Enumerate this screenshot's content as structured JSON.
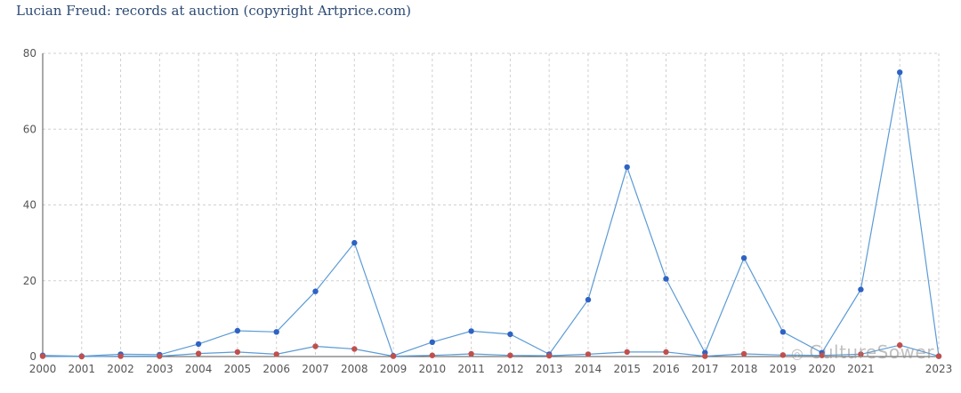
{
  "title": "Lucian Freud: records at auction (copyright Artprice.com)",
  "watermark": "CultureSower",
  "colors": {
    "series_line": "#5b9bd5",
    "series_marker_blue": "#2e63c4",
    "series_marker_red": "#c0504d",
    "grid": "#d0d0d0",
    "axis": "#555555"
  },
  "chart_data": {
    "type": "line",
    "title": "Lucian Freud: records at auction (copyright Artprice.com)",
    "x": [
      "2000",
      "2001",
      "2002",
      "2003",
      "2004",
      "2005",
      "2006",
      "2007",
      "2008",
      "2009",
      "2010",
      "2011",
      "2012",
      "2013",
      "2014",
      "2015",
      "2016",
      "2017",
      "2018",
      "2019",
      "2020",
      "2021",
      "2022",
      "2023"
    ],
    "x_tick_labels": [
      "2000",
      "2001",
      "2002",
      "2003",
      "2004",
      "2005",
      "2006",
      "2007",
      "2008",
      "2009",
      "2010",
      "2011",
      "2012",
      "2013",
      "2014",
      "2015",
      "2016",
      "2017",
      "2018",
      "2019",
      "2020",
      "2021",
      "",
      "2023"
    ],
    "series": [
      {
        "color": "#2e63c4",
        "values": [
          0.3,
          0.1,
          0.6,
          0.5,
          3.3,
          6.8,
          6.5,
          17.2,
          30.0,
          0.2,
          3.8,
          6.7,
          5.9,
          0.6,
          15.0,
          50.0,
          20.5,
          1.0,
          26.0,
          6.5,
          1.0,
          17.7,
          75.0,
          0.1
        ]
      },
      {
        "color": "#c0504d",
        "values": [
          0.1,
          0.0,
          0.1,
          0.1,
          0.8,
          1.2,
          0.6,
          2.7,
          2.0,
          0.1,
          0.3,
          0.7,
          0.3,
          0.2,
          0.6,
          1.2,
          1.2,
          0.1,
          0.7,
          0.4,
          0.3,
          0.6,
          3.0,
          0.1
        ]
      }
    ],
    "ylim": [
      0,
      80
    ],
    "y_ticks": [
      0,
      20,
      40,
      60,
      80
    ],
    "grid": true,
    "legend": "none"
  }
}
